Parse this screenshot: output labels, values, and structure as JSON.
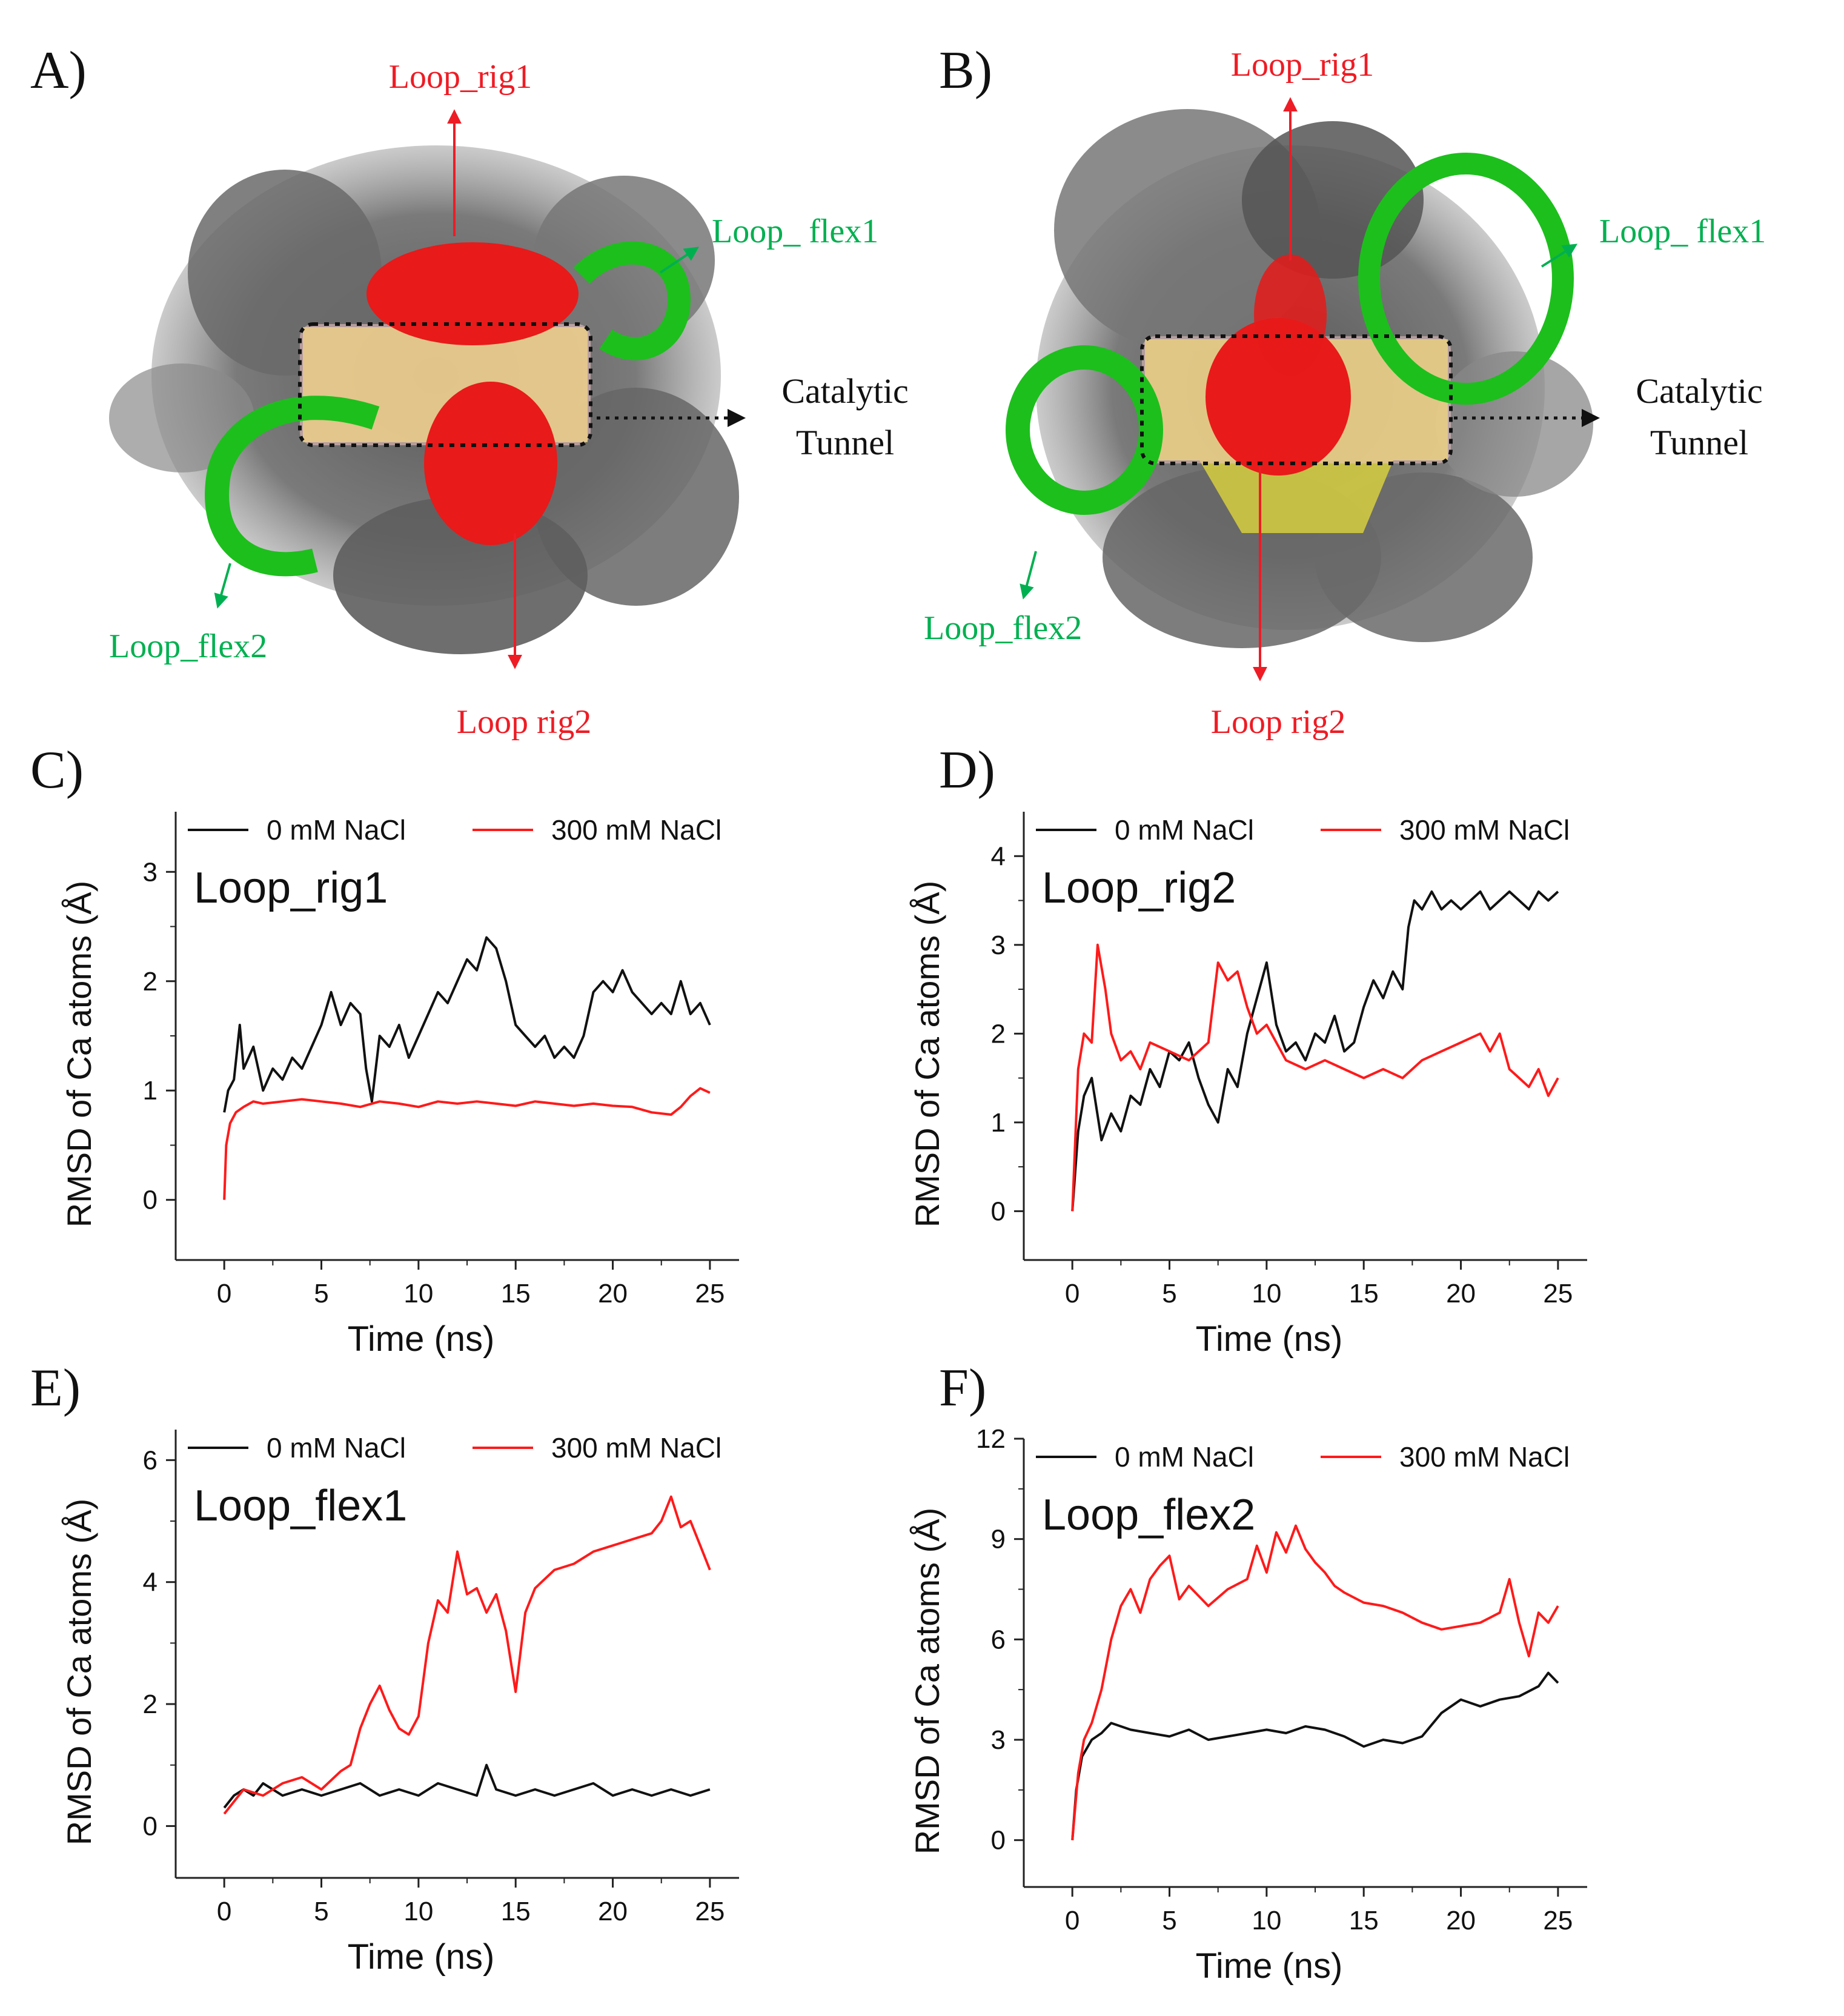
{
  "panel_letters": [
    "A)",
    "B)",
    "C)",
    "D)",
    "E)",
    "F)"
  ],
  "structure_A": {
    "labels": {
      "rig1": "Loop_rig1",
      "rig2": "Loop  rig2",
      "flex1": "Loop_ flex1",
      "flex2": "Loop_flex2",
      "tunnel_line1": "Catalytic",
      "tunnel_line2": "Tunnel"
    }
  },
  "structure_B": {
    "labels": {
      "rig1": "Loop_rig1",
      "rig2": "Loop  rig2",
      "flex1": "Loop_ flex1",
      "flex2": "Loop_flex2",
      "tunnel_line1": "Catalytic",
      "tunnel_line2": "Tunnel"
    }
  },
  "colors": {
    "black_series": "#111111",
    "red_series": "#ff1a1a",
    "rigid_label": "#ee1c25",
    "flex_label": "#00b050",
    "protein_gray": "#6b6b6b",
    "sheet_yellow": "#e6dc3a",
    "tunnel_pink": "#f4c7c7"
  },
  "chart_data": [
    {
      "panel": "C)",
      "type": "line",
      "title": "Loop_rig1",
      "xlabel": "Time (ns)",
      "ylabel": "RMSD of Ca atoms (Å)",
      "xlim": [
        -2.5,
        26.5
      ],
      "ylim": [
        -0.55,
        3.55
      ],
      "xticks": [
        0,
        5,
        10,
        15,
        20,
        25
      ],
      "yticks": [
        0,
        1,
        2,
        3
      ],
      "legend": [
        "0 mM NaCl",
        "300 mM NaCl"
      ],
      "series": [
        {
          "name": "0 mM NaCl",
          "color": "#111111",
          "x": [
            0,
            0.2,
            0.5,
            0.8,
            1,
            1.5,
            2,
            2.5,
            3,
            3.5,
            4,
            4.5,
            5,
            5.5,
            6,
            6.5,
            7,
            7.3,
            7.6,
            8,
            8.5,
            9,
            9.5,
            10,
            10.5,
            11,
            11.5,
            12,
            12.5,
            13,
            13.5,
            14,
            14.5,
            15,
            15.5,
            16,
            16.5,
            17,
            17.5,
            18,
            18.5,
            19,
            19.5,
            20,
            20.5,
            21,
            21.5,
            22,
            22.5,
            23,
            23.5,
            24,
            24.5,
            25
          ],
          "y": [
            0.8,
            1.0,
            1.1,
            1.6,
            1.2,
            1.4,
            1.0,
            1.2,
            1.1,
            1.3,
            1.2,
            1.4,
            1.6,
            1.9,
            1.6,
            1.8,
            1.7,
            1.2,
            0.9,
            1.5,
            1.4,
            1.6,
            1.3,
            1.5,
            1.7,
            1.9,
            1.8,
            2.0,
            2.2,
            2.1,
            2.4,
            2.3,
            2.0,
            1.6,
            1.5,
            1.4,
            1.5,
            1.3,
            1.4,
            1.3,
            1.5,
            1.9,
            2.0,
            1.9,
            2.1,
            1.9,
            1.8,
            1.7,
            1.8,
            1.7,
            2.0,
            1.7,
            1.8,
            1.6
          ]
        },
        {
          "name": "300 mM NaCl",
          "color": "#ff1a1a",
          "x": [
            0,
            0.1,
            0.3,
            0.6,
            1,
            1.5,
            2,
            3,
            4,
            5,
            6,
            7,
            8,
            9,
            10,
            11,
            12,
            13,
            14,
            15,
            16,
            17,
            18,
            19,
            20,
            21,
            22,
            23,
            23.5,
            24,
            24.5,
            25
          ],
          "y": [
            0.0,
            0.5,
            0.7,
            0.8,
            0.85,
            0.9,
            0.88,
            0.9,
            0.92,
            0.9,
            0.88,
            0.85,
            0.9,
            0.88,
            0.85,
            0.9,
            0.88,
            0.9,
            0.88,
            0.86,
            0.9,
            0.88,
            0.86,
            0.88,
            0.86,
            0.85,
            0.8,
            0.78,
            0.85,
            0.95,
            1.02,
            0.98
          ]
        }
      ]
    },
    {
      "panel": "D)",
      "type": "line",
      "title": "Loop_rig2",
      "xlabel": "Time (ns)",
      "ylabel": "RMSD of Ca atoms (Å)",
      "xlim": [
        -2.5,
        26.5
      ],
      "ylim": [
        -0.55,
        4.5
      ],
      "xticks": [
        0,
        5,
        10,
        15,
        20,
        25
      ],
      "yticks": [
        0,
        1,
        2,
        3,
        4
      ],
      "legend": [
        "0 mM NaCl",
        "300 mM NaCl"
      ],
      "series": [
        {
          "name": "0 mM NaCl",
          "color": "#111111",
          "x": [
            0,
            0.3,
            0.6,
            1,
            1.5,
            2,
            2.5,
            3,
            3.5,
            4,
            4.5,
            5,
            5.5,
            6,
            6.5,
            7,
            7.5,
            8,
            8.5,
            9,
            9.5,
            10,
            10.5,
            11,
            11.5,
            12,
            12.5,
            13,
            13.5,
            14,
            14.5,
            15,
            15.5,
            16,
            16.5,
            17,
            17.3,
            17.6,
            18,
            18.5,
            19,
            19.5,
            20,
            20.5,
            21,
            21.5,
            22,
            22.5,
            23,
            23.5,
            24,
            24.5,
            25
          ],
          "y": [
            0.0,
            0.9,
            1.3,
            1.5,
            0.8,
            1.1,
            0.9,
            1.3,
            1.2,
            1.6,
            1.4,
            1.8,
            1.7,
            1.9,
            1.5,
            1.2,
            1.0,
            1.6,
            1.4,
            2.0,
            2.4,
            2.8,
            2.1,
            1.8,
            1.9,
            1.7,
            2.0,
            1.9,
            2.2,
            1.8,
            1.9,
            2.3,
            2.6,
            2.4,
            2.7,
            2.5,
            3.2,
            3.5,
            3.4,
            3.6,
            3.4,
            3.5,
            3.4,
            3.5,
            3.6,
            3.4,
            3.5,
            3.6,
            3.5,
            3.4,
            3.6,
            3.5,
            3.6
          ]
        },
        {
          "name": "300 mM NaCl",
          "color": "#ff1a1a",
          "x": [
            0,
            0.3,
            0.6,
            1,
            1.3,
            1.7,
            2,
            2.5,
            3,
            3.5,
            4,
            5,
            6,
            7,
            7.5,
            8,
            8.5,
            9,
            9.5,
            10,
            11,
            12,
            13,
            14,
            15,
            16,
            17,
            18,
            19,
            20,
            21,
            21.5,
            22,
            22.5,
            23,
            23.5,
            24,
            24.5,
            25
          ],
          "y": [
            0.0,
            1.6,
            2.0,
            1.9,
            3.0,
            2.5,
            2.0,
            1.7,
            1.8,
            1.6,
            1.9,
            1.8,
            1.7,
            1.9,
            2.8,
            2.6,
            2.7,
            2.3,
            2.0,
            2.1,
            1.7,
            1.6,
            1.7,
            1.6,
            1.5,
            1.6,
            1.5,
            1.7,
            1.8,
            1.9,
            2.0,
            1.8,
            2.0,
            1.6,
            1.5,
            1.4,
            1.6,
            1.3,
            1.5
          ]
        }
      ]
    },
    {
      "panel": "E)",
      "type": "line",
      "title": "Loop_flex1",
      "xlabel": "Time (ns)",
      "ylabel": "RMSD of Ca atoms (Å)",
      "xlim": [
        -2.5,
        26.5
      ],
      "ylim": [
        -0.85,
        6.5
      ],
      "xticks": [
        0,
        5,
        10,
        15,
        20,
        25
      ],
      "yticks": [
        0,
        2,
        4,
        6
      ],
      "legend": [
        "0 mM NaCl",
        "300 mM NaCl"
      ],
      "series": [
        {
          "name": "0 mM NaCl",
          "color": "#111111",
          "x": [
            0,
            0.5,
            1,
            1.5,
            2,
            3,
            4,
            5,
            6,
            7,
            8,
            9,
            10,
            11,
            12,
            13,
            13.5,
            14,
            15,
            16,
            17,
            18,
            19,
            20,
            21,
            22,
            23,
            24,
            25
          ],
          "y": [
            0.3,
            0.5,
            0.6,
            0.5,
            0.7,
            0.5,
            0.6,
            0.5,
            0.6,
            0.7,
            0.5,
            0.6,
            0.5,
            0.7,
            0.6,
            0.5,
            1.0,
            0.6,
            0.5,
            0.6,
            0.5,
            0.6,
            0.7,
            0.5,
            0.6,
            0.5,
            0.6,
            0.5,
            0.6
          ]
        },
        {
          "name": "300 mM NaCl",
          "color": "#ff1a1a",
          "x": [
            0,
            1,
            2,
            3,
            4,
            5,
            6,
            6.5,
            7,
            7.5,
            8,
            8.5,
            9,
            9.5,
            10,
            10.5,
            11,
            11.5,
            12,
            12.5,
            13,
            13.5,
            14,
            14.5,
            15,
            15.5,
            16,
            17,
            18,
            19,
            20,
            21,
            22,
            22.5,
            23,
            23.5,
            24,
            24.5,
            25
          ],
          "y": [
            0.2,
            0.6,
            0.5,
            0.7,
            0.8,
            0.6,
            0.9,
            1.0,
            1.6,
            2.0,
            2.3,
            1.9,
            1.6,
            1.5,
            1.8,
            3.0,
            3.7,
            3.5,
            4.5,
            3.8,
            3.9,
            3.5,
            3.8,
            3.2,
            2.2,
            3.5,
            3.9,
            4.2,
            4.3,
            4.5,
            4.6,
            4.7,
            4.8,
            5.0,
            5.4,
            4.9,
            5.0,
            4.6,
            4.2
          ]
        }
      ]
    },
    {
      "panel": "F)",
      "type": "line",
      "title": "Loop_flex2",
      "xlabel": "Time (ns)",
      "ylabel": "RMSD of Ca atoms (Å)",
      "xlim": [
        -2.5,
        26.5
      ],
      "ylim": [
        -1.4,
        12
      ],
      "xticks": [
        0,
        5,
        10,
        15,
        20,
        25
      ],
      "yticks": [
        0,
        3,
        6,
        9,
        12
      ],
      "legend": [
        "0 mM NaCl",
        "300 mM NaCl"
      ],
      "series": [
        {
          "name": "0 mM NaCl",
          "color": "#111111",
          "x": [
            0,
            0.2,
            0.5,
            1,
            1.5,
            2,
            3,
            4,
            5,
            6,
            7,
            8,
            9,
            10,
            11,
            12,
            13,
            14,
            15,
            16,
            17,
            18,
            19,
            20,
            21,
            22,
            23,
            24,
            24.5,
            25
          ],
          "y": [
            0.0,
            1.5,
            2.5,
            3.0,
            3.2,
            3.5,
            3.3,
            3.2,
            3.1,
            3.3,
            3.0,
            3.1,
            3.2,
            3.3,
            3.2,
            3.4,
            3.3,
            3.1,
            2.8,
            3.0,
            2.9,
            3.1,
            3.8,
            4.2,
            4.0,
            4.2,
            4.3,
            4.6,
            5.0,
            4.7
          ]
        },
        {
          "name": "300 mM NaCl",
          "color": "#ff1a1a",
          "x": [
            0,
            0.3,
            0.6,
            1,
            1.5,
            2,
            2.5,
            3,
            3.5,
            4,
            4.5,
            5,
            5.5,
            6,
            7,
            8,
            9,
            9.5,
            10,
            10.5,
            11,
            11.5,
            12,
            12.5,
            13,
            13.5,
            14,
            15,
            16,
            17,
            18,
            19,
            20,
            21,
            22,
            22.5,
            23,
            23.5,
            24,
            24.5,
            25
          ],
          "y": [
            0.0,
            2.0,
            3.0,
            3.5,
            4.5,
            6.0,
            7.0,
            7.5,
            6.8,
            7.8,
            8.2,
            8.5,
            7.2,
            7.6,
            7.0,
            7.5,
            7.8,
            8.8,
            8.0,
            9.2,
            8.6,
            9.4,
            8.7,
            8.3,
            8.0,
            7.6,
            7.4,
            7.1,
            7.0,
            6.8,
            6.5,
            6.3,
            6.4,
            6.5,
            6.8,
            7.8,
            6.5,
            5.5,
            6.8,
            6.5,
            7.0
          ]
        }
      ]
    }
  ]
}
